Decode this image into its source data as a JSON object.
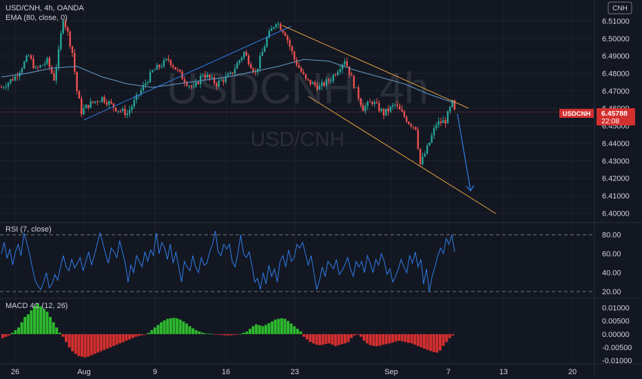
{
  "header": {
    "symbol_line": "USD/CNH, 4h, OANDA",
    "ema_label": "EMA (80, close, 0)",
    "currency_badge": "CNH"
  },
  "watermark": {
    "ticker": "USDCNH, 4h",
    "pair": "USD/CNH"
  },
  "price_tag": {
    "symbol": "USDCNH",
    "price": "6.45788",
    "countdown": "22:08"
  },
  "colors": {
    "background": "#131722",
    "up": "#26a69a",
    "down": "#ef5350",
    "ema": "#5b8fb9",
    "channel": "#e6a53a",
    "trend": "#2f80ed",
    "rsi": "#2f80ed",
    "macd_pos": "#2eb82e",
    "macd_neg": "#d32f2f",
    "axis_text": "#d1d4dc"
  },
  "chart_data": [
    {
      "type": "candlestick",
      "title": "USD/CNH, 4h, OANDA",
      "ylim": [
        6.395,
        6.522
      ],
      "y_ticks": [
        "6.51000",
        "6.50000",
        "6.49000",
        "6.48000",
        "6.47000",
        "6.46000",
        "6.45000",
        "6.44000",
        "6.43000",
        "6.42000",
        "6.41000",
        "6.40000"
      ],
      "x_ticks": [
        "26",
        "Aug",
        "9",
        "16",
        "23",
        "Sep",
        "7",
        "13",
        "20"
      ],
      "close_path": [
        [
          0,
          6.472
        ],
        [
          6,
          6.478
        ],
        [
          12,
          6.49
        ],
        [
          15,
          6.482
        ],
        [
          20,
          6.487
        ],
        [
          23,
          6.477
        ],
        [
          25,
          6.492
        ],
        [
          27,
          6.512
        ],
        [
          29,
          6.503
        ],
        [
          31,
          6.492
        ],
        [
          33,
          6.47
        ],
        [
          35,
          6.458
        ],
        [
          38,
          6.462
        ],
        [
          44,
          6.466
        ],
        [
          50,
          6.46
        ],
        [
          55,
          6.457
        ],
        [
          60,
          6.468
        ],
        [
          66,
          6.481
        ],
        [
          73,
          6.488
        ],
        [
          80,
          6.476
        ],
        [
          84,
          6.471
        ],
        [
          88,
          6.48
        ],
        [
          94,
          6.474
        ],
        [
          100,
          6.479
        ],
        [
          106,
          6.492
        ],
        [
          111,
          6.48
        ],
        [
          116,
          6.5
        ],
        [
          120,
          6.51
        ],
        [
          124,
          6.503
        ],
        [
          128,
          6.488
        ],
        [
          133,
          6.476
        ],
        [
          139,
          6.472
        ],
        [
          144,
          6.477
        ],
        [
          150,
          6.488
        ],
        [
          155,
          6.47
        ],
        [
          158,
          6.46
        ],
        [
          162,
          6.464
        ],
        [
          167,
          6.457
        ],
        [
          172,
          6.462
        ],
        [
          178,
          6.452
        ],
        [
          181,
          6.449
        ],
        [
          183,
          6.428
        ],
        [
          186,
          6.437
        ],
        [
          190,
          6.451
        ],
        [
          194,
          6.453
        ],
        [
          197,
          6.463
        ],
        [
          198,
          6.458
        ]
      ],
      "series": [
        {
          "name": "EMA (80, close, 0)",
          "values": [
            6.478,
            6.48,
            6.483,
            6.484,
            6.478,
            6.474,
            6.472,
            6.474,
            6.476,
            6.478,
            6.481,
            6.484,
            6.488,
            6.487,
            6.482,
            6.478,
            6.474,
            6.468,
            6.463
          ]
        }
      ],
      "annotations": [
        "Rising trendline (blue) from late July lows to 6.511 high on Aug 20",
        "Descending channel (orange) from Aug 20 high",
        "Blue projection arrow from ~6.462 down to ~6.412"
      ],
      "last_price": 6.45788
    },
    {
      "type": "line",
      "title": "RSI (7, close)",
      "ylim": [
        15,
        90
      ],
      "y_ticks": [
        "80.00",
        "60.00",
        "40.00",
        "20.00"
      ],
      "bands": [
        80,
        20
      ],
      "values": [
        60,
        72,
        55,
        65,
        48,
        62,
        70,
        58,
        82,
        72,
        60,
        45,
        32,
        26,
        22,
        30,
        40,
        24,
        28,
        38,
        32,
        46,
        58,
        46,
        42,
        54,
        45,
        50,
        56,
        42,
        52,
        62,
        48,
        58,
        70,
        82,
        72,
        60,
        50,
        66,
        62,
        56,
        74,
        62,
        50,
        30,
        48,
        40,
        58,
        52,
        46,
        62,
        52,
        64,
        58,
        82,
        60,
        72,
        66,
        54,
        70,
        50,
        62,
        46,
        30,
        52,
        46,
        42,
        58,
        46,
        40,
        56,
        48,
        50,
        62,
        70,
        84,
        62,
        58,
        70,
        65,
        70,
        52,
        46,
        60,
        80,
        60,
        56,
        62,
        48,
        30,
        34,
        22,
        40,
        28,
        48,
        36,
        44,
        30,
        52,
        58,
        46,
        64,
        52,
        56,
        70,
        66,
        72,
        60,
        48,
        58,
        40,
        22,
        32,
        46,
        36,
        52,
        48,
        44,
        54,
        38,
        42,
        48,
        56,
        44,
        36,
        52,
        46,
        52,
        40,
        58,
        50,
        40,
        54,
        48,
        60,
        52,
        38,
        44,
        30,
        36,
        44,
        54,
        46,
        40,
        58,
        50,
        62,
        46,
        54,
        28,
        44,
        20,
        36,
        46,
        58,
        66,
        60,
        76,
        70,
        80,
        62
      ]
    },
    {
      "type": "bar",
      "title": "MACD 4C (12, 26)",
      "ylim": [
        -0.011,
        0.0125
      ],
      "y_ticks": [
        "0.01000",
        "0.00500",
        "0.00000",
        "-0.00500",
        "-0.01000"
      ],
      "histogram": [
        -0.0015,
        -0.001,
        -0.0005,
        0.0005,
        0.0015,
        0.0025,
        0.0045,
        0.0065,
        0.0075,
        0.009,
        0.0105,
        0.0115,
        0.0105,
        0.0095,
        0.0085,
        0.0065,
        0.0045,
        0.0025,
        0.0005,
        -0.001,
        -0.003,
        -0.005,
        -0.0065,
        -0.0075,
        -0.0083,
        -0.0086,
        -0.0088,
        -0.0085,
        -0.008,
        -0.0075,
        -0.007,
        -0.0065,
        -0.006,
        -0.0055,
        -0.005,
        -0.0045,
        -0.004,
        -0.0035,
        -0.003,
        -0.0025,
        -0.002,
        -0.0015,
        -0.001,
        -0.0007,
        -0.0004,
        -0.0002,
        0.0005,
        0.0015,
        0.0025,
        0.0035,
        0.0045,
        0.0052,
        0.0058,
        0.006,
        0.0062,
        0.006,
        0.0055,
        0.0048,
        0.004,
        0.003,
        0.0022,
        0.0015,
        0.001,
        0.0006,
        0.0003,
        0.0002,
        0.0001,
        -0.0001,
        -0.0002,
        -0.0003,
        -0.0004,
        -0.0005,
        -0.0004,
        -0.0003,
        -0.0001,
        0.0001,
        0.0005,
        0.001,
        0.002,
        0.003,
        0.0037,
        0.0034,
        0.003,
        0.0035,
        0.0042,
        0.0048,
        0.0055,
        0.0058,
        0.006,
        0.0058,
        0.005,
        0.004,
        0.003,
        0.002,
        0.001,
        -0.001,
        -0.002,
        -0.003,
        -0.0035,
        -0.004,
        -0.0042,
        -0.004,
        -0.0037,
        -0.0035,
        -0.004,
        -0.0045,
        -0.0042,
        -0.0038,
        -0.0035,
        -0.003,
        -0.0015,
        -0.0005,
        -0.0002,
        -0.001,
        -0.0025,
        -0.0035,
        -0.0042,
        -0.0045,
        -0.0046,
        -0.0044,
        -0.004,
        -0.0038,
        -0.0035,
        -0.0032,
        -0.0028,
        -0.0025,
        -0.0027,
        -0.003,
        -0.0033,
        -0.0035,
        -0.004,
        -0.0045,
        -0.005,
        -0.0055,
        -0.006,
        -0.0064,
        -0.0068,
        -0.007,
        -0.0062,
        -0.0045,
        -0.003,
        -0.0015,
        -0.0005
      ]
    }
  ]
}
